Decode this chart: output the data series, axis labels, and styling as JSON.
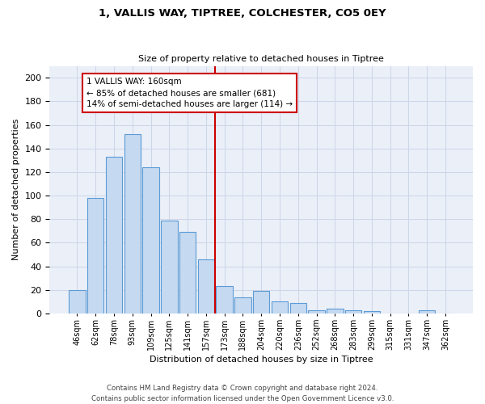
{
  "title1": "1, VALLIS WAY, TIPTREE, COLCHESTER, CO5 0EY",
  "title2": "Size of property relative to detached houses in Tiptree",
  "xlabel": "Distribution of detached houses by size in Tiptree",
  "ylabel": "Number of detached properties",
  "categories": [
    "46sqm",
    "62sqm",
    "78sqm",
    "93sqm",
    "109sqm",
    "125sqm",
    "141sqm",
    "157sqm",
    "173sqm",
    "188sqm",
    "204sqm",
    "220sqm",
    "236sqm",
    "252sqm",
    "268sqm",
    "283sqm",
    "299sqm",
    "315sqm",
    "331sqm",
    "347sqm",
    "362sqm"
  ],
  "values": [
    20,
    98,
    133,
    152,
    124,
    79,
    69,
    46,
    23,
    14,
    19,
    10,
    9,
    3,
    4,
    3,
    2,
    0,
    0,
    3,
    0
  ],
  "bar_color": "#c5d9f1",
  "bar_edge_color": "#5b9bd5",
  "property_line_idx": 7,
  "property_label": "1 VALLIS WAY: 160sqm",
  "annotation_line1": "← 85% of detached houses are smaller (681)",
  "annotation_line2": "14% of semi-detached houses are larger (114) →",
  "vline_color": "#cc0000",
  "footer": "Contains HM Land Registry data © Crown copyright and database right 2024.\nContains public sector information licensed under the Open Government Licence v3.0.",
  "ylim": [
    0,
    210
  ],
  "grid_color": "#cdd5e8",
  "bg_color": "#eaeff8"
}
